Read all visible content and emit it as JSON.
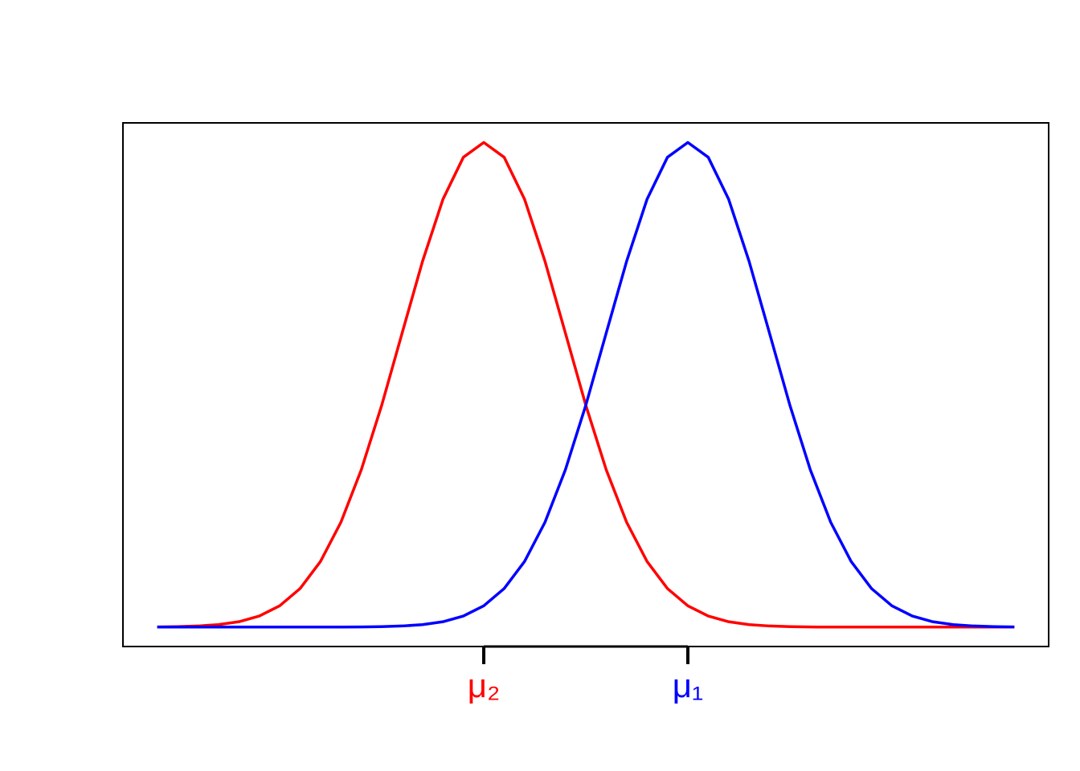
{
  "chart_data": {
    "type": "line",
    "x": [
      -5.25,
      -5,
      -4.75,
      -4.5,
      -4.25,
      -4,
      -3.75,
      -3.5,
      -3.25,
      -3,
      -2.75,
      -2.5,
      -2.25,
      -2,
      -1.75,
      -1.5,
      -1.25,
      -1,
      -0.75,
      -0.5,
      -0.25,
      0,
      0.25,
      0.5,
      0.75,
      1,
      1.25,
      1.5,
      1.75,
      2,
      2.25,
      2.5,
      2.75,
      3,
      3.25,
      3.5,
      3.75,
      4,
      4.25,
      4.5,
      4.75,
      5,
      5.25
    ],
    "series": [
      {
        "color": "#ff0000",
        "values": [
          0.0001,
          0.0004,
          0.0009,
          0.002,
          0.0044,
          0.0091,
          0.0175,
          0.0317,
          0.054,
          0.0863,
          0.1295,
          0.1826,
          0.242,
          0.3011,
          0.3521,
          0.3867,
          0.3989,
          0.3867,
          0.3521,
          0.3011,
          0.242,
          0.1826,
          0.1295,
          0.0863,
          0.054,
          0.0317,
          0.0175,
          0.0091,
          0.0044,
          0.002,
          0.0009,
          0.0004,
          0.0001,
          0,
          0,
          0,
          0,
          0,
          0,
          0,
          0,
          0,
          0
        ]
      },
      {
        "color": "#0000ff",
        "values": [
          0,
          0,
          0,
          0,
          0,
          0,
          0,
          0,
          0,
          0,
          0.0001,
          0.0004,
          0.0009,
          0.002,
          0.0044,
          0.0091,
          0.0175,
          0.0317,
          0.054,
          0.0863,
          0.1295,
          0.1826,
          0.242,
          0.3011,
          0.3521,
          0.3867,
          0.3989,
          0.3867,
          0.3521,
          0.3011,
          0.242,
          0.1826,
          0.1295,
          0.0863,
          0.054,
          0.0317,
          0.0175,
          0.0091,
          0.0044,
          0.002,
          0.0009,
          0.0004,
          0.0001
        ]
      }
    ],
    "xlim": [
      -5.67,
      5.67
    ],
    "ylim": [
      -0.016,
      0.415
    ],
    "xticks": [
      {
        "value": -1.25,
        "label": "μ₂"
      },
      {
        "value": 1.25,
        "label": "μ₁"
      }
    ],
    "xtick_colors": [
      "#ff0000",
      "#0000ff"
    ]
  }
}
